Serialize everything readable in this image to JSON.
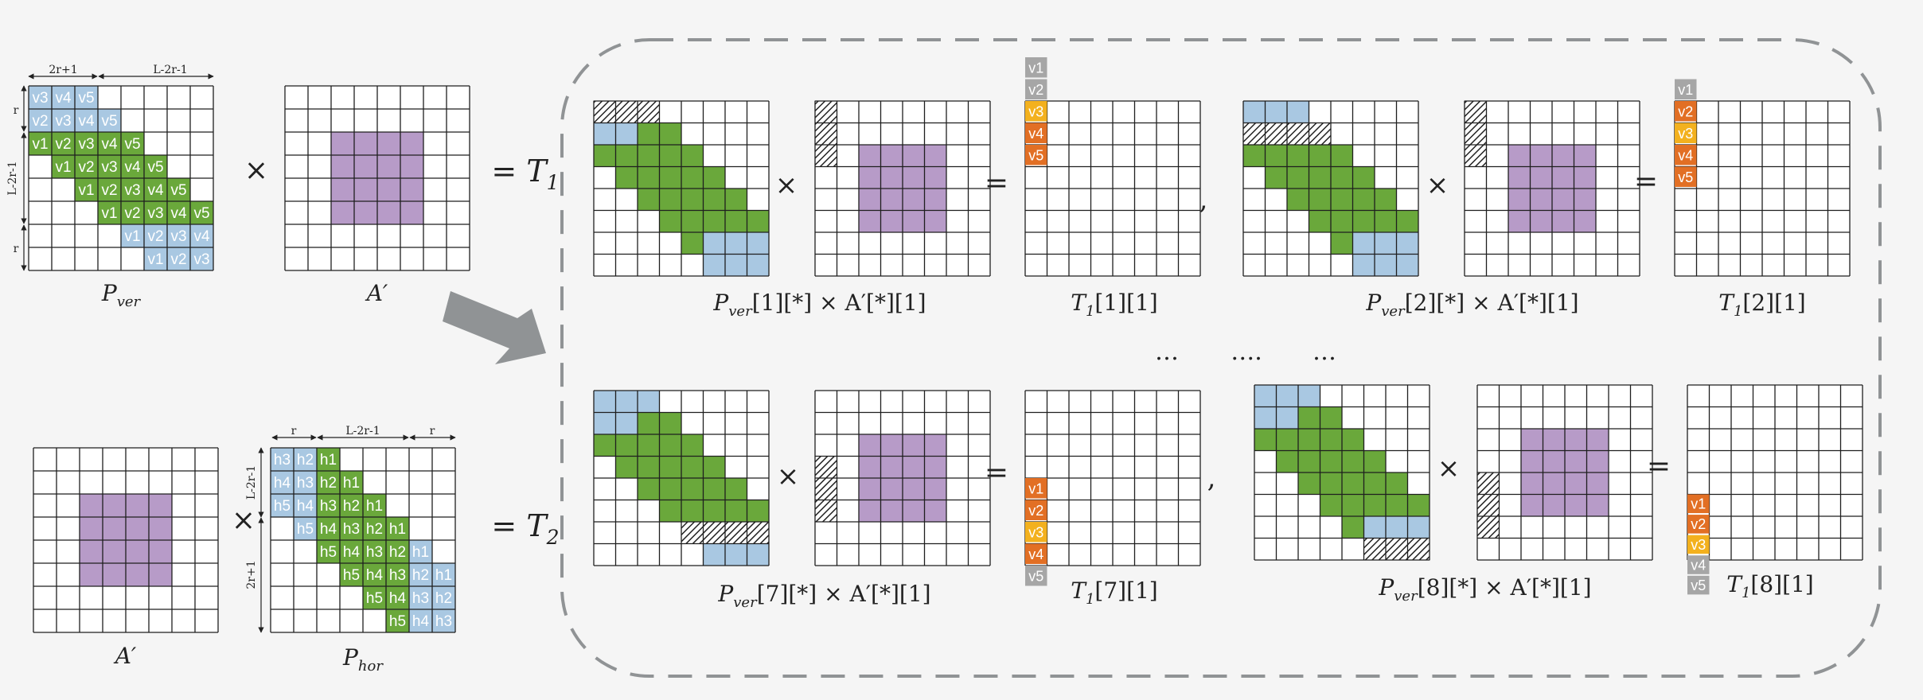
{
  "colors": {
    "blue": "#a9c8e2",
    "green": "#6aa83b",
    "purple": "#b79bc8",
    "gray": "#a6a6a6",
    "yellow": "#f3b11e",
    "orange": "#e26f24",
    "outline": "#8c8c8c",
    "grid": "#1f1f1f",
    "arrow": "#909395"
  },
  "left": {
    "pver_label": "P",
    "pver_sub": "ver",
    "aprime_label": "A′",
    "hor_label": "P",
    "hor_sub": "hor",
    "times": "×",
    "eq_t1": "= T",
    "eq_t1_sub": "1",
    "eq_t2": "= T",
    "eq_t2_sub": "2",
    "ann_top_a": "2r+1",
    "ann_top_b": "L-2r-1",
    "ann_side_a": "r",
    "ann_side_b": "L-2r-1",
    "ann_side_c": "r",
    "hor_ann_a": "r",
    "hor_ann_b": "L-2r-1",
    "hor_ann_c": "r",
    "hor_side_a": "L-2r-1",
    "hor_side_b": "2r+1",
    "pver_rows": [
      [
        "v3",
        "v4",
        "v5"
      ],
      [
        "v2",
        "v3",
        "v4",
        "v5"
      ],
      [
        "v1",
        "v2",
        "v3",
        "v4",
        "v5"
      ],
      [
        "v1",
        "v2",
        "v3",
        "v4",
        "v5"
      ],
      [
        "v1",
        "v2",
        "v3",
        "v4",
        "v5"
      ],
      [
        "v1",
        "v2",
        "v3",
        "v4",
        "v5"
      ],
      [
        "v1",
        "v2",
        "v3",
        "v4"
      ],
      [
        "v1",
        "v2",
        "v3"
      ]
    ],
    "phor_rows": [
      [
        "h3",
        "h2",
        "h1"
      ],
      [
        "h4",
        "h3",
        "h2",
        "h1"
      ],
      [
        "h5",
        "h4",
        "h3",
        "h2",
        "h1"
      ],
      [
        "h5",
        "h4",
        "h3",
        "h2",
        "h1"
      ],
      [
        "h5",
        "h4",
        "h3",
        "h2",
        "h1"
      ],
      [
        "h5",
        "h4",
        "h3",
        "h2",
        "h1"
      ],
      [
        "h5",
        "h4",
        "h3",
        "h2"
      ],
      [
        "h5",
        "h4",
        "h3"
      ]
    ]
  },
  "panels": [
    {
      "caption_main": "P",
      "caption_sub": "ver",
      "caption_rest": "[1][*] × A′[*][1]",
      "t_label": "T",
      "t_sub": "1",
      "t_rest": "[1][1]",
      "vs": [
        "v1",
        "v2",
        "v3",
        "v4",
        "v5"
      ]
    },
    {
      "caption_main": "P",
      "caption_sub": "ver",
      "caption_rest": "[2][*] × A′[*][1]",
      "t_label": "T",
      "t_sub": "1",
      "t_rest": "[2][1]",
      "vs": [
        "v1",
        "v2",
        "v3",
        "v4",
        "v5"
      ]
    },
    {
      "caption_main": "P",
      "caption_sub": "ver",
      "caption_rest": "[7][*] × A′[*][1]",
      "t_label": "T",
      "t_sub": "1",
      "t_rest": "[7][1]",
      "vs": [
        "v1",
        "v2",
        "v3",
        "v4",
        "v5"
      ]
    },
    {
      "caption_main": "P",
      "caption_sub": "ver",
      "caption_rest": "[8][*] × A′[*][1]",
      "t_label": "T",
      "t_sub": "1",
      "t_rest": "[8][1]",
      "vs": [
        "v1",
        "v2",
        "v3",
        "v4",
        "v5"
      ]
    }
  ],
  "symbols": {
    "times": "×",
    "equals": "=",
    "comma": ","
  },
  "ellipsis": [
    "…",
    "….",
    "…"
  ]
}
